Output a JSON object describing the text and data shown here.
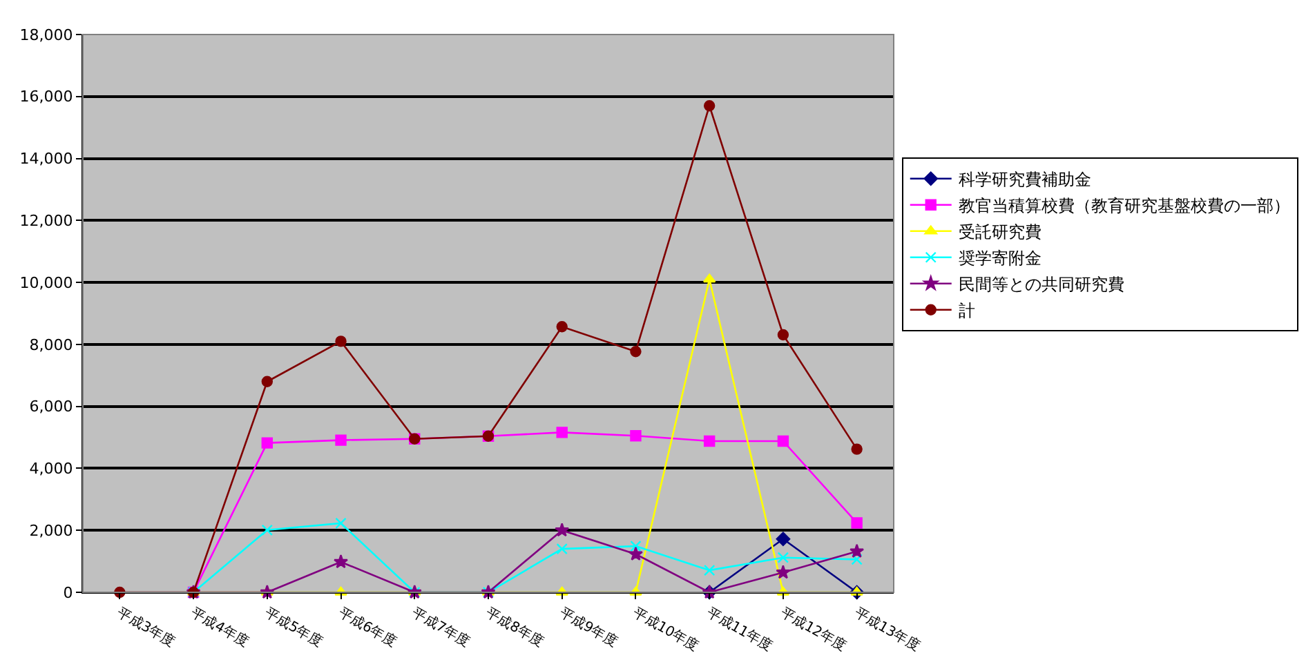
{
  "chart_data": {
    "type": "line",
    "categories": [
      "平成3年度",
      "平成4年度",
      "平成5年度",
      "平成6年度",
      "平成7年度",
      "平成8年度",
      "平成9年度",
      "平成10年度",
      "平成11年度",
      "平成12年度",
      "平成13年度"
    ],
    "series": [
      {
        "name": "科学研究費補助金",
        "color": "#000080",
        "marker": "diamond",
        "values": [
          null,
          null,
          null,
          null,
          null,
          null,
          null,
          null,
          0,
          1720,
          0
        ]
      },
      {
        "name": "教官当積算校費（教育研究基盤校費の一部）",
        "color": "#ff00ff",
        "marker": "square",
        "values": [
          null,
          0,
          4820,
          4910,
          4950,
          5040,
          5160,
          5050,
          4880,
          4880,
          2240
        ]
      },
      {
        "name": "受託研究費",
        "color": "#ffff00",
        "marker": "triangle",
        "values": [
          null,
          0,
          0,
          0,
          0,
          0,
          0,
          0,
          10100,
          0,
          0
        ]
      },
      {
        "name": "奨学寄附金",
        "color": "#00ffff",
        "marker": "cross",
        "values": [
          null,
          0,
          2010,
          2230,
          0,
          0,
          1400,
          1490,
          710,
          1120,
          1060
        ]
      },
      {
        "name": "民間等との共同研究費",
        "color": "#800080",
        "marker": "star",
        "values": [
          null,
          0,
          0,
          980,
          0,
          0,
          2000,
          1230,
          0,
          640,
          1320
        ]
      },
      {
        "name": "計",
        "color": "#800000",
        "marker": "circle",
        "values": [
          0,
          0,
          6800,
          8100,
          4950,
          5040,
          8570,
          7770,
          15700,
          8310,
          4620
        ]
      }
    ],
    "ylim": [
      0,
      18000
    ],
    "yticks": [
      {
        "value": 0,
        "label": "0"
      },
      {
        "value": 2000,
        "label": "2,000"
      },
      {
        "value": 4000,
        "label": "4,000"
      },
      {
        "value": 6000,
        "label": "6,000"
      },
      {
        "value": 8000,
        "label": "8,000"
      },
      {
        "value": 10000,
        "label": "10,000"
      },
      {
        "value": 12000,
        "label": "12,000"
      },
      {
        "value": 14000,
        "label": "14,000"
      },
      {
        "value": 16000,
        "label": "16,000"
      },
      {
        "value": 18000,
        "label": "18,000"
      }
    ],
    "grid": "y",
    "legend": "right",
    "line_style": "solid"
  }
}
